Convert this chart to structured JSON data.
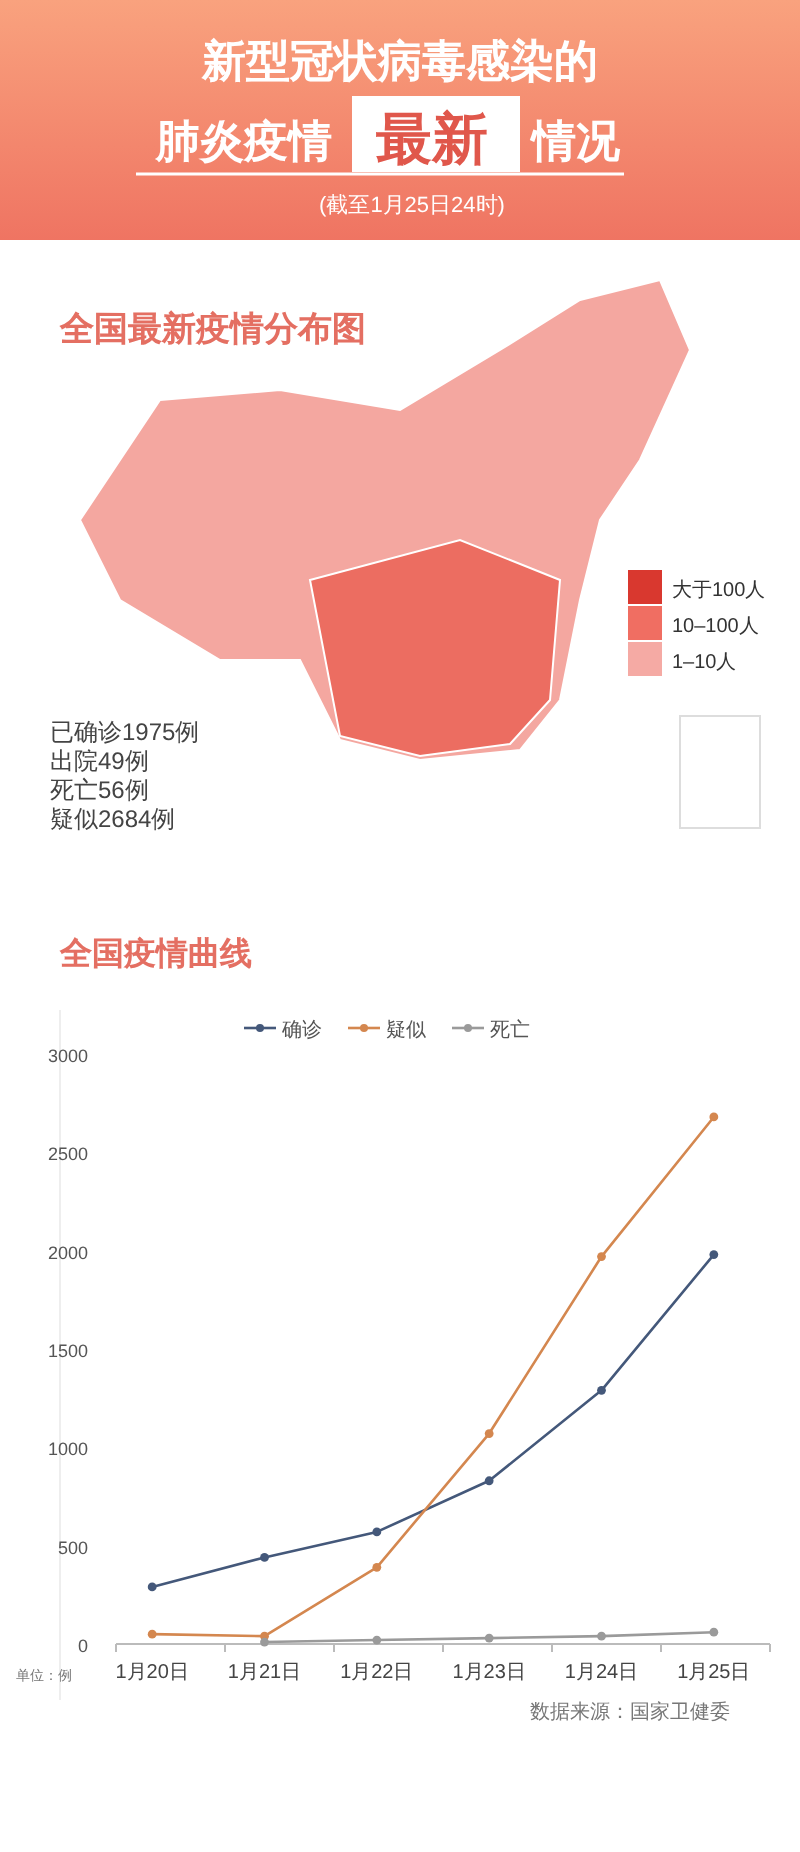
{
  "chart_data": [
    {
      "type": "other",
      "annotations": [
        "新型冠状病毒感染的",
        "肺炎疫情",
        "最新",
        "情况",
        "(截至1月25日24时)"
      ]
    },
    {
      "type": "other",
      "title": "全国最新疫情分布图",
      "annotations": [
        "大于100人",
        "10–100人",
        "1–10人",
        "已确诊1975例",
        "出院49例",
        "死亡56例",
        "疑似2684例"
      ]
    },
    {
      "type": "line",
      "title": "全国疫情曲线",
      "categories": [
        "1月20日",
        "1月21日",
        "1月22日",
        "1月23日",
        "1月24日",
        "1月25日"
      ],
      "series": [
        {
          "name": "确诊",
          "color": "#44587a",
          "values": [
            290,
            440,
            570,
            830,
            1290,
            1980
          ]
        },
        {
          "name": "疑似",
          "color": "#d4874f",
          "values": [
            50,
            40,
            390,
            1070,
            1970,
            2680
          ]
        },
        {
          "name": "死亡",
          "color": "#9a9a9a",
          "values": [
            null,
            10,
            20,
            30,
            40,
            60
          ]
        }
      ],
      "ylim": [
        0,
        3000
      ],
      "yticks": [
        0,
        500,
        1000,
        1500,
        2000,
        2500,
        3000
      ],
      "legend": "top",
      "marker": "circle",
      "grid": false,
      "annotations": [
        "单位：例",
        "数据来源：国家卫健委"
      ]
    }
  ]
}
